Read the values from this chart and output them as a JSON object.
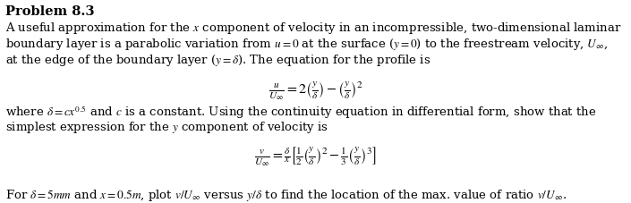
{
  "title": "Problem 8.3",
  "line1": "A useful approximation for the $x$ component of velocity in an incompressible, two-dimensional laminar",
  "line2": "boundary layer is a parabolic variation from $u = 0$ at the surface ($y = 0$) to the freestream velocity, $U_{\\infty}$,",
  "line3": "at the edge of the boundary layer ($y = \\delta$). The equation for the profile is",
  "eq1": "$\\frac{u}{U_{\\infty}} = 2\\left(\\frac{y}{\\delta}\\right) - \\left(\\frac{y}{\\delta}\\right)^{2}$",
  "line4": "where $\\delta = cx^{0.5}$ and $c$ is a constant. Using the continuity equation in differential form, show that the",
  "line5": "simplest expression for the $y$ component of velocity is",
  "eq2": "$\\frac{v}{U_{\\infty}} = \\frac{\\delta}{x}\\left[\\frac{1}{2}\\left(\\frac{y}{\\delta}\\right)^{2} - \\frac{1}{3}\\left(\\frac{y}{\\delta}\\right)^{3}\\right]$",
  "line6": "For $\\delta = 5mm$ and $x = 0.5m$, plot $v/U_{\\infty}$ versus $y/\\delta$ to find the location of the max. value of ratio $v/U_{\\infty}$.",
  "bg_color": "#ffffff",
  "text_color": "#000000",
  "font_size": 9.5,
  "title_font_size": 10.5,
  "eq_font_size": 11.5
}
